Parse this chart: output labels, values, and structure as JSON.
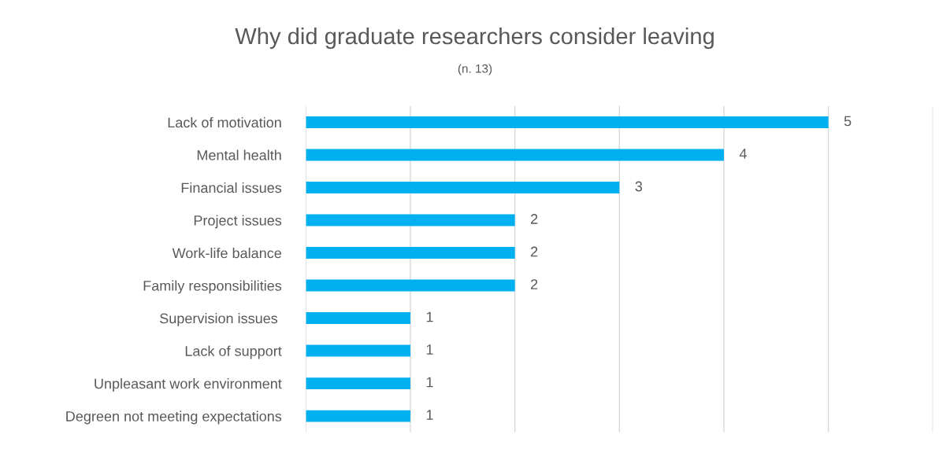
{
  "chart_data": {
    "type": "bar",
    "title": "Why did graduate researchers consider leaving",
    "subtitle": "(n. 13)",
    "orientation": "horizontal",
    "categories": [
      "Lack of motivation",
      "Mental health",
      "Financial issues",
      "Project issues",
      "Work-life balance",
      "Family responsibilities",
      "Supervision issues ",
      "Lack of support",
      "Unpleasant work environment",
      "Degreen not meeting expectations"
    ],
    "values": [
      5,
      4,
      3,
      2,
      2,
      2,
      1,
      1,
      1,
      1
    ],
    "color": "#00b0f0",
    "xlim": [
      0,
      6
    ],
    "xticks": [
      {
        "value": 0,
        "label": null
      },
      {
        "value": 1,
        "label": null
      },
      {
        "value": 2,
        "label": null
      },
      {
        "value": 3,
        "label": null
      },
      {
        "value": 4,
        "label": null
      },
      {
        "value": 5,
        "label": null
      },
      {
        "value": 6,
        "label": null
      }
    ],
    "grid": "x",
    "tick_labels": "y",
    "data_labels": true
  }
}
